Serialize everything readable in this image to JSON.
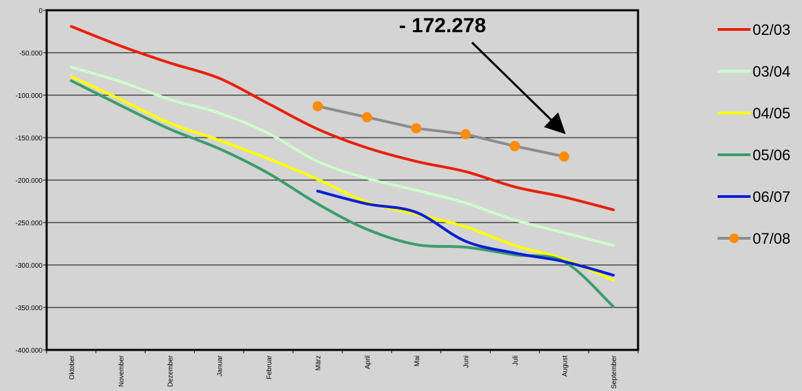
{
  "chart_data": {
    "type": "line",
    "title": "",
    "xlabel": "",
    "ylabel": "",
    "categories": [
      "Oktober",
      "November",
      "Dezember",
      "Januar",
      "Februar",
      "März",
      "April",
      "Mai",
      "Juni",
      "Juli",
      "August",
      "September"
    ],
    "ylim": [
      -400000,
      0
    ],
    "yticks": [
      {
        "value": 0,
        "label": "0"
      },
      {
        "value": -50000,
        "label": "-50.000"
      },
      {
        "value": -100000,
        "label": "-100.000"
      },
      {
        "value": -150000,
        "label": "-150.000"
      },
      {
        "value": -200000,
        "label": "-200.000"
      },
      {
        "value": -250000,
        "label": "-250.000"
      },
      {
        "value": -300000,
        "label": "-300.000"
      },
      {
        "value": -350000,
        "label": "-350.000"
      },
      {
        "value": -400000,
        "label": "-400.000"
      }
    ],
    "grid": true,
    "legend_position": "right",
    "series": [
      {
        "name": "02/03",
        "color": "#e8200c",
        "markers": false,
        "values": [
          -19000,
          -42000,
          -62000,
          -80000,
          -110000,
          -140000,
          -162000,
          -178000,
          -190000,
          -208000,
          -220000,
          -235000
        ]
      },
      {
        "name": "03/04",
        "color": "#ccffcc",
        "markers": false,
        "values": [
          -67000,
          -84000,
          -105000,
          -121000,
          -145000,
          -178000,
          -198000,
          -212000,
          -227000,
          -247000,
          -262000,
          -277000
        ]
      },
      {
        "name": "04/05",
        "color": "#ffff00",
        "markers": false,
        "values": [
          -78000,
          -105000,
          -133000,
          -153000,
          -175000,
          -199000,
          -226000,
          -240000,
          -255000,
          -277000,
          -293000,
          -318000
        ]
      },
      {
        "name": "05/06",
        "color": "#3c9c6c",
        "markers": false,
        "values": [
          -83000,
          -112000,
          -140000,
          -163000,
          -192000,
          -228000,
          -258000,
          -276000,
          -279000,
          -288000,
          -296000,
          -349000
        ]
      },
      {
        "name": "06/07",
        "color": "#0a1ed2",
        "markers": false,
        "values": [
          null,
          null,
          null,
          null,
          null,
          -213000,
          -228000,
          -238000,
          -272000,
          -286000,
          -296000,
          -312000
        ]
      },
      {
        "name": "07/08",
        "color": "#8c8c8c",
        "marker_color": "#ff8c00",
        "markers": true,
        "values": [
          null,
          null,
          null,
          null,
          null,
          -113000,
          -126000,
          -139000,
          -146000,
          -160000,
          -172278,
          null
        ]
      }
    ],
    "annotations": [
      {
        "text": "- 172.278",
        "arrow_to": {
          "category": "August",
          "value": -172278
        }
      }
    ]
  }
}
